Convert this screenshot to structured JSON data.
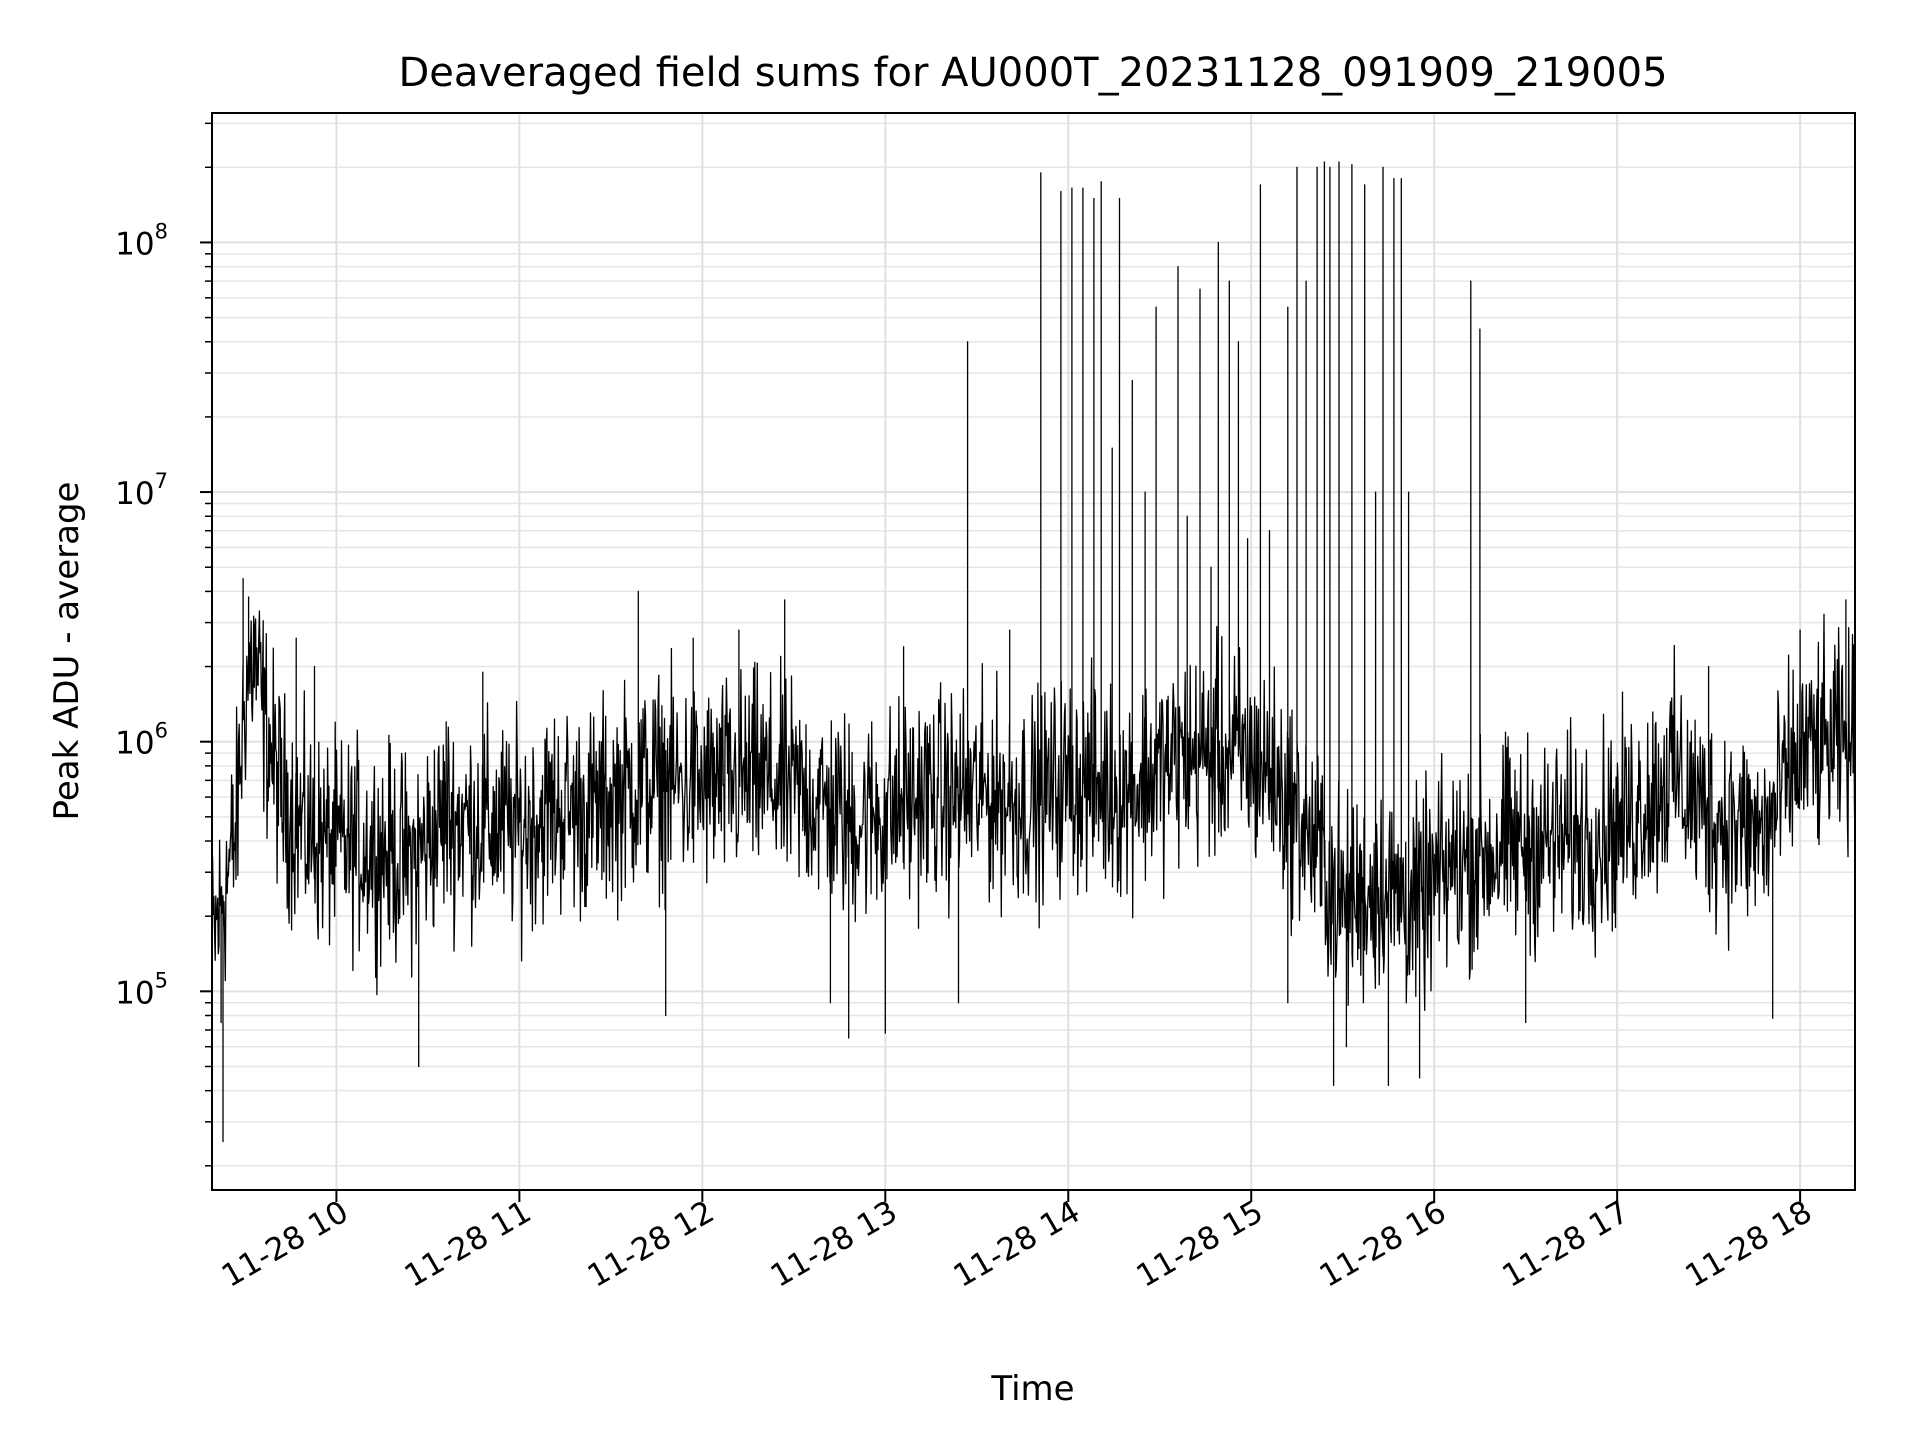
{
  "chart_data": {
    "type": "line",
    "title": "Deaveraged field sums for AU000T_20231128_091909_219005",
    "xlabel": "Time",
    "ylabel": "Peak ADU - average",
    "x_range": [
      "11-28 09:19",
      "11-28 18:20"
    ],
    "xlim": [
      9.32,
      18.3
    ],
    "x_ticks": [
      {
        "value": 10,
        "label": "11-28 10"
      },
      {
        "value": 11,
        "label": "11-28 11"
      },
      {
        "value": 12,
        "label": "11-28 12"
      },
      {
        "value": 13,
        "label": "11-28 13"
      },
      {
        "value": 14,
        "label": "11-28 14"
      },
      {
        "value": 15,
        "label": "11-28 15"
      },
      {
        "value": 16,
        "label": "11-28 16"
      },
      {
        "value": 17,
        "label": "11-28 17"
      },
      {
        "value": 18,
        "label": "11-28 18"
      }
    ],
    "y_scale": "log",
    "ylim": [
      16000,
      330000000
    ],
    "y_ticks": [
      {
        "value": 100000,
        "base": "10",
        "exp": "5"
      },
      {
        "value": 1000000,
        "base": "10",
        "exp": "6"
      },
      {
        "value": 10000000,
        "base": "10",
        "exp": "7"
      },
      {
        "value": 100000000,
        "base": "10",
        "exp": "8"
      }
    ],
    "grid": true,
    "line_color": "#000000",
    "series": [
      {
        "baseline": [
          [
            9.32,
            150000
          ],
          [
            9.45,
            420000
          ],
          [
            9.5,
            1600000
          ],
          [
            9.55,
            2200000
          ],
          [
            9.62,
            1100000
          ],
          [
            9.7,
            600000
          ],
          [
            9.85,
            420000
          ],
          [
            10.0,
            380000
          ],
          [
            10.2,
            380000
          ],
          [
            10.4,
            330000
          ],
          [
            10.6,
            500000
          ],
          [
            10.8,
            470000
          ],
          [
            11.0,
            450000
          ],
          [
            11.2,
            540000
          ],
          [
            11.4,
            520000
          ],
          [
            11.6,
            650000
          ],
          [
            11.8,
            700000
          ],
          [
            12.0,
            650000
          ],
          [
            12.3,
            720000
          ],
          [
            12.6,
            600000
          ],
          [
            12.8,
            480000
          ],
          [
            13.0,
            520000
          ],
          [
            13.2,
            600000
          ],
          [
            13.5,
            620000
          ],
          [
            13.8,
            580000
          ],
          [
            14.0,
            700000
          ],
          [
            14.3,
            620000
          ],
          [
            14.6,
            850000
          ],
          [
            14.9,
            900000
          ],
          [
            15.1,
            750000
          ],
          [
            15.3,
            450000
          ],
          [
            15.5,
            220000
          ],
          [
            15.7,
            260000
          ],
          [
            15.9,
            220000
          ],
          [
            16.1,
            320000
          ],
          [
            16.4,
            380000
          ],
          [
            16.7,
            400000
          ],
          [
            17.0,
            450000
          ],
          [
            17.3,
            750000
          ],
          [
            17.5,
            500000
          ],
          [
            17.8,
            420000
          ],
          [
            18.0,
            900000
          ],
          [
            18.3,
            1000000
          ]
        ],
        "spikes": [
          [
            9.49,
            4500000
          ],
          [
            9.52,
            3800000
          ],
          [
            9.6,
            2500000
          ],
          [
            9.78,
            2600000
          ],
          [
            9.88,
            2000000
          ],
          [
            10.6,
            1200000
          ],
          [
            10.8,
            1900000
          ],
          [
            11.65,
            4000000
          ],
          [
            11.95,
            2600000
          ],
          [
            12.2,
            2800000
          ],
          [
            12.45,
            3700000
          ],
          [
            13.1,
            2400000
          ],
          [
            13.45,
            40000000
          ],
          [
            13.68,
            2800000
          ],
          [
            13.85,
            190000000
          ],
          [
            13.96,
            160000000
          ],
          [
            14.02,
            165000000
          ],
          [
            14.08,
            165000000
          ],
          [
            14.14,
            150000000
          ],
          [
            14.18,
            175000000
          ],
          [
            14.24,
            15000000
          ],
          [
            14.28,
            150000000
          ],
          [
            14.35,
            28000000
          ],
          [
            14.42,
            10000000
          ],
          [
            14.48,
            55000000
          ],
          [
            14.6,
            80000000
          ],
          [
            14.65,
            8000000
          ],
          [
            14.72,
            65000000
          ],
          [
            14.78,
            5000000
          ],
          [
            14.82,
            100000000
          ],
          [
            14.88,
            70000000
          ],
          [
            14.93,
            40000000
          ],
          [
            14.98,
            6500000
          ],
          [
            15.05,
            170000000
          ],
          [
            15.1,
            7000000
          ],
          [
            15.2,
            55000000
          ],
          [
            15.25,
            200000000
          ],
          [
            15.3,
            70000000
          ],
          [
            15.36,
            200000000
          ],
          [
            15.4,
            210000000
          ],
          [
            15.43,
            200000000
          ],
          [
            15.48,
            210000000
          ],
          [
            15.55,
            205000000
          ],
          [
            15.62,
            170000000
          ],
          [
            15.68,
            10000000
          ],
          [
            15.72,
            200000000
          ],
          [
            15.78,
            180000000
          ],
          [
            15.82,
            180000000
          ],
          [
            15.86,
            10000000
          ],
          [
            16.2,
            70000000
          ],
          [
            16.25,
            45000000
          ],
          [
            17.5,
            2000000
          ],
          [
            18.0,
            2800000
          ],
          [
            18.1,
            2500000
          ],
          [
            18.25,
            3700000
          ]
        ],
        "dips": [
          [
            9.38,
            25000
          ],
          [
            9.37,
            75000
          ],
          [
            10.45,
            50000
          ],
          [
            11.8,
            80000
          ],
          [
            12.7,
            90000
          ],
          [
            12.8,
            65000
          ],
          [
            13.0,
            68000
          ],
          [
            13.4,
            90000
          ],
          [
            15.2,
            90000
          ],
          [
            15.45,
            42000
          ],
          [
            15.52,
            60000
          ],
          [
            15.75,
            42000
          ],
          [
            15.92,
            45000
          ],
          [
            16.5,
            75000
          ],
          [
            17.85,
            78000
          ]
        ]
      }
    ]
  }
}
